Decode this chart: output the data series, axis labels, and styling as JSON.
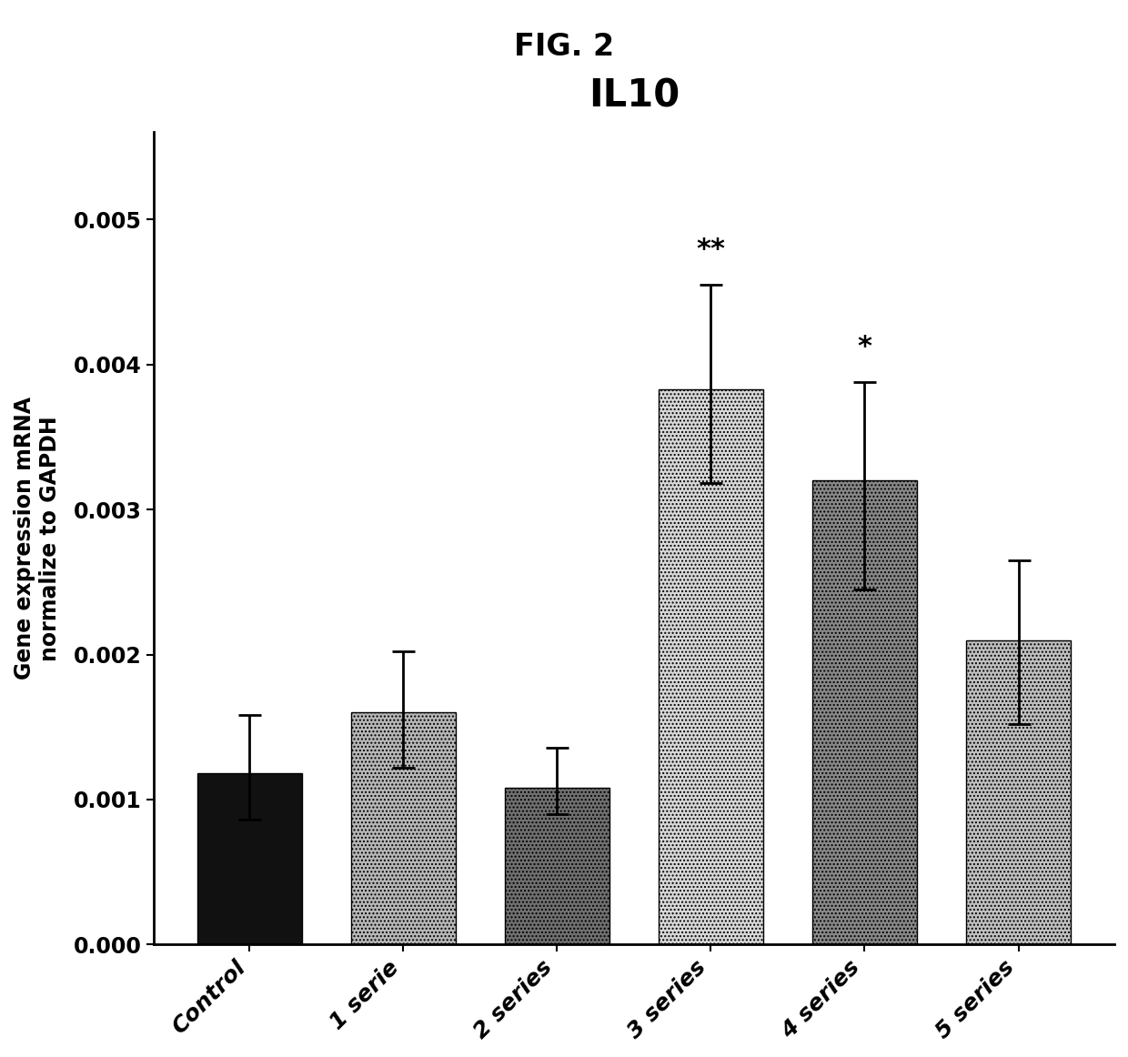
{
  "title": "IL10",
  "fig_label": "FIG. 2",
  "ylabel": "Gene expression mRNA\nnormalize to GAPDH",
  "categories": [
    "Control",
    "1 serie",
    "2 series",
    "3 series",
    "4 series",
    "5 series"
  ],
  "values": [
    0.00118,
    0.0016,
    0.00108,
    0.00383,
    0.0032,
    0.0021
  ],
  "errors_upper": [
    0.0004,
    0.00042,
    0.00028,
    0.00072,
    0.00068,
    0.00055
  ],
  "errors_lower": [
    0.00032,
    0.00038,
    0.00018,
    0.00065,
    0.00075,
    0.00058
  ],
  "bar_colors": [
    "#111111",
    "#b8b8b8",
    "#707070",
    "#d8d8d8",
    "#888888",
    "#c0c0c0"
  ],
  "bar_hatch": [
    "",
    "....",
    "....",
    "....",
    "....",
    "...."
  ],
  "ylim": [
    0,
    0.0056
  ],
  "yticks": [
    0.0,
    0.001,
    0.002,
    0.003,
    0.004,
    0.005
  ],
  "ytick_labels": [
    "0.000",
    "0.001",
    "0.002",
    "0.003",
    "0.004",
    "0.005"
  ],
  "significance": [
    "",
    "",
    "",
    "**",
    "*",
    ""
  ],
  "background_color": "#ffffff",
  "title_fontsize": 30,
  "fig_label_fontsize": 24,
  "ylabel_fontsize": 17,
  "tick_fontsize": 17,
  "xtick_fontsize": 18,
  "sig_fontsize": 22,
  "bar_width": 0.68
}
